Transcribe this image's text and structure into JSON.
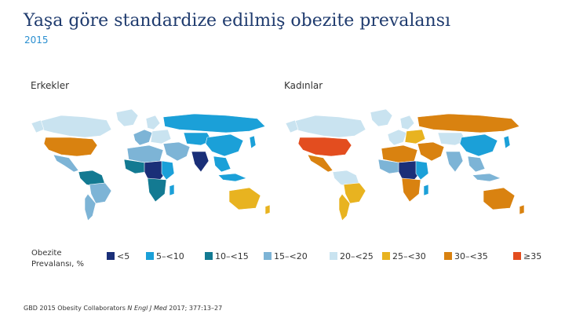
{
  "title": "Yaşa göre standardize edilmiş obezite prevalansı",
  "subtitle": "2015",
  "maps": {
    "men_label": "Erkekler",
    "women_label": "Kadınlar"
  },
  "legend": {
    "title": "Obezite Prevalansı, %",
    "items": [
      {
        "label": "<5",
        "color": "#1a2f78"
      },
      {
        "label": "5–<10",
        "color": "#1ba0d8"
      },
      {
        "label": "10–<15",
        "color": "#137a92"
      },
      {
        "label": "15–<20",
        "color": "#7db4d6"
      },
      {
        "label": "20–<25",
        "color": "#c9e3f0"
      },
      {
        "label": "25–<30",
        "color": "#e8b320"
      },
      {
        "label": "30–<35",
        "color": "#d98210"
      },
      {
        "label": "≥35",
        "color": "#e34d1f"
      }
    ]
  },
  "citation": {
    "prefix": "GBD 2015 Obesity Collaborators ",
    "journal": "N Engl J Med",
    "suffix": " 2017; 377:13–27"
  }
}
